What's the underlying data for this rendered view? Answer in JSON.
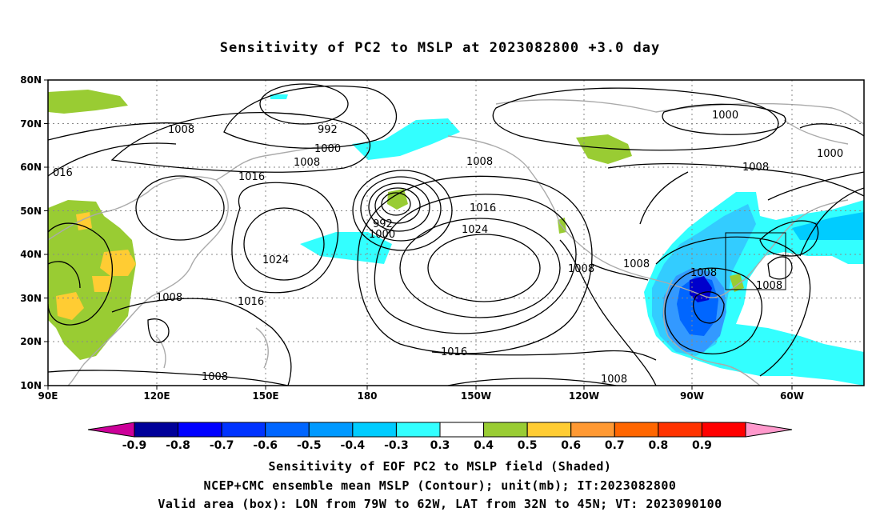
{
  "title": "Sensitivity of PC2 to MSLP at 2023082800 +3.0 day",
  "map": {
    "lat_labels": [
      "80N",
      "70N",
      "60N",
      "50N",
      "40N",
      "30N",
      "20N",
      "10N"
    ],
    "lon_labels": [
      "90E",
      "120E",
      "150E",
      "180",
      "150W",
      "120W",
      "90W",
      "60W"
    ],
    "contour_labels": [
      {
        "text": "1008"
      },
      {
        "text": "992"
      },
      {
        "text": "1000"
      },
      {
        "text": "1008"
      },
      {
        "text": "016"
      },
      {
        "text": "1016"
      },
      {
        "text": "1024"
      },
      {
        "text": "1008"
      },
      {
        "text": "1016"
      },
      {
        "text": "992"
      },
      {
        "text": "1000"
      },
      {
        "text": "1008"
      },
      {
        "text": "1016"
      },
      {
        "text": "1024"
      },
      {
        "text": "1008"
      },
      {
        "text": "1008"
      },
      {
        "text": "1008"
      },
      {
        "text": "1016"
      },
      {
        "text": "1008"
      },
      {
        "text": "1008"
      },
      {
        "text": "1000"
      },
      {
        "text": "1000"
      },
      {
        "text": "1008"
      },
      {
        "text": "1008"
      }
    ],
    "shading_colors": {
      "green": "#99cc33",
      "yellow": "#ffcc33",
      "cyan": "#33ffff",
      "light_blue": "#33ccff",
      "mid_blue": "#3399ff",
      "blue": "#0066ff",
      "dark_blue": "#0000cc"
    },
    "contour_color": "#000000",
    "coast_color": "#aaaaaa",
    "valid_box": {
      "lon_west": -79,
      "lon_east": -62,
      "lat_south": 32,
      "lat_north": 45
    }
  },
  "colorbar": {
    "labels": [
      "-0.9",
      "-0.8",
      "-0.7",
      "-0.6",
      "-0.5",
      "-0.4",
      "-0.3",
      "0.3",
      "0.4",
      "0.5",
      "0.6",
      "0.7",
      "0.8",
      "0.9"
    ],
    "colors": [
      "#000099",
      "#0000ff",
      "#0033ff",
      "#0066ff",
      "#0099ff",
      "#00ccff",
      "#33ffff",
      "#ffffff",
      "#99cc33",
      "#ffcc33",
      "#ff9933",
      "#ff6600",
      "#ff3300",
      "#ff0000"
    ],
    "low_arrow_color": "#cc0099",
    "high_arrow_color": "#ff99cc"
  },
  "captions": {
    "line1": "Sensitivity of EOF PC2 to MSLP field (Shaded)",
    "line2": "NCEP+CMC ensemble mean MSLP (Contour); unit(mb); IT:2023082800",
    "line3": "Valid area (box): LON from 79W to 62W, LAT from 32N to 45N; VT: 2023090100"
  }
}
